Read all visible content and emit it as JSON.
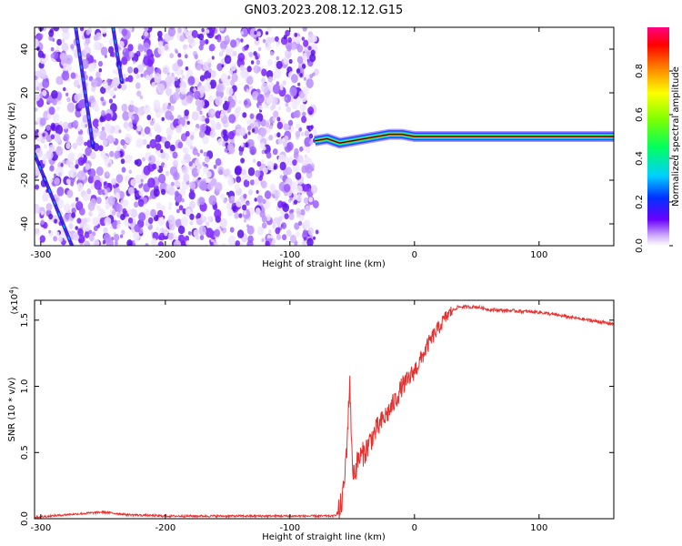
{
  "title": "GN03.2023.208.12.12.G15",
  "chart_data": [
    {
      "type": "heatmap",
      "xlabel": "Height of straight line (km)",
      "ylabel": "Frequency (Hz)",
      "xlim": [
        -305,
        160
      ],
      "ylim": [
        -50,
        50
      ],
      "xticks": [
        -300,
        -200,
        -100,
        0,
        100
      ],
      "yticks": [
        -40,
        -20,
        0,
        20,
        40
      ],
      "xtick_labels": [
        "-300",
        "-200",
        "-100",
        "0",
        "100"
      ],
      "ytick_labels": [
        "-40",
        "-20",
        "0",
        "20",
        "40"
      ],
      "colorbar": {
        "label": "Normalized spectral amplitude",
        "range": [
          0,
          1
        ],
        "ticks": [
          0.0,
          0.2,
          0.4,
          0.6,
          0.8
        ],
        "tick_labels": [
          "0.0",
          "0.2",
          "0.4",
          "0.6",
          "0.8"
        ],
        "colormap": "rainbow"
      },
      "features": {
        "noise_region_x": [
          -305,
          -78
        ],
        "signal_track": {
          "x": [
            -80,
            -70,
            -60,
            -50,
            -40,
            -30,
            -20,
            -10,
            0,
            20,
            40,
            60,
            80,
            100,
            130,
            160
          ],
          "y": [
            -2,
            -1,
            -3,
            -2,
            -1,
            0,
            1,
            1,
            0,
            0,
            0,
            0,
            0,
            0,
            0,
            0
          ]
        },
        "streaks": [
          {
            "x": [
              -305,
              -275
            ],
            "y": [
              -8,
              -50
            ]
          },
          {
            "x": [
              -272,
              -258
            ],
            "y": [
              50,
              -5
            ]
          },
          {
            "x": [
              -242,
              -235
            ],
            "y": [
              50,
              25
            ]
          }
        ],
        "grid": false
      }
    },
    {
      "type": "line",
      "xlabel": "Height of straight line (km)",
      "ylabel": "SNR (10 * v/v)",
      "yscale_label": "(x10",
      "yscale_exp": "4",
      "xlim": [
        -305,
        160
      ],
      "ylim": [
        0,
        1.65
      ],
      "xticks": [
        -300,
        -200,
        -100,
        0,
        100
      ],
      "yticks": [
        0.0,
        0.5,
        1.0,
        1.5
      ],
      "xtick_labels": [
        "-300",
        "-200",
        "-100",
        "0",
        "100"
      ],
      "ytick_labels": [
        "0.0",
        "0.5",
        "1.0",
        "1.5"
      ],
      "color": "#e8302f",
      "grid": false,
      "series": [
        {
          "x": [
            -305,
            -280,
            -250,
            -230,
            -200,
            -150,
            -100,
            -80,
            -65,
            -60,
            -57,
            -55,
            -53,
            -52,
            -50,
            -48,
            -45,
            -40,
            -35,
            -30,
            -25,
            -20,
            -15,
            -10,
            -5,
            0,
            5,
            10,
            15,
            20,
            25,
            30,
            35,
            40,
            50,
            60,
            80,
            100,
            120,
            140,
            160
          ],
          "y": [
            0.01,
            0.03,
            0.05,
            0.03,
            0.02,
            0.02,
            0.02,
            0.02,
            0.02,
            0.05,
            0.2,
            0.45,
            0.8,
            1.08,
            0.4,
            0.35,
            0.45,
            0.5,
            0.6,
            0.68,
            0.75,
            0.82,
            0.9,
            1.0,
            1.05,
            1.12,
            1.2,
            1.3,
            1.38,
            1.45,
            1.52,
            1.57,
            1.6,
            1.6,
            1.6,
            1.58,
            1.57,
            1.56,
            1.53,
            1.5,
            1.47
          ]
        }
      ]
    }
  ]
}
